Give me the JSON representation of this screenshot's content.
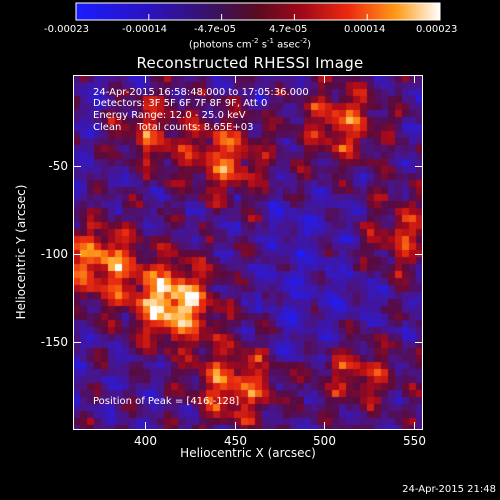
{
  "colorbar": {
    "ticks": [
      "-0.00023",
      "-0.00014",
      "-4.7e-05",
      "4.7e-05",
      "0.00014",
      "0.00023"
    ],
    "unit_label": "(photons cm",
    "unit_exp1": "-2",
    "unit_mid": " s",
    "unit_exp2": "-1",
    "unit_end": " asec",
    "unit_exp3": "-2",
    "unit_close": ")"
  },
  "annotations": {
    "time_range": "24-Apr-2015 16:58:48.000 to 17:05:36.000",
    "detectors": "Detectors: 3F 5F 6F 7F 8F 9F, Att 0",
    "energy_range": "Energy Range: 12.0 - 25.0 keV",
    "algorithm": "Clean     Total counts: 8.65E+03",
    "peak_position": "Position of Peak = [416,-128]"
  },
  "footer": {
    "timestamp": "24-Apr-2015 21:48"
  },
  "chart_data": {
    "type": "heatmap",
    "title": "Reconstructed RHESSI Image",
    "xlabel": "Heliocentric X (arcsec)",
    "ylabel": "Heliocentric Y (arcsec)",
    "xlim": [
      360,
      555
    ],
    "ylim": [
      -200,
      2
    ],
    "x_ticks": [
      400,
      450,
      500,
      550
    ],
    "y_ticks": [
      -50,
      -100,
      -150
    ],
    "colorscale_range": [
      -0.00023,
      0.00023
    ],
    "peak": {
      "x": 416,
      "y": -128
    },
    "bright_sources": [
      {
        "x": 416,
        "y": -128,
        "relative_intensity": 1.0
      },
      {
        "x": 375,
        "y": -105,
        "relative_intensity": 0.75
      },
      {
        "x": 445,
        "y": -45,
        "relative_intensity": 0.65
      },
      {
        "x": 450,
        "y": -175,
        "relative_intensity": 0.7
      },
      {
        "x": 510,
        "y": -25,
        "relative_intensity": 0.6
      },
      {
        "x": 540,
        "y": -90,
        "relative_intensity": 0.55
      },
      {
        "x": 400,
        "y": -30,
        "relative_intensity": 0.5
      },
      {
        "x": 520,
        "y": -165,
        "relative_intensity": 0.5
      }
    ]
  }
}
